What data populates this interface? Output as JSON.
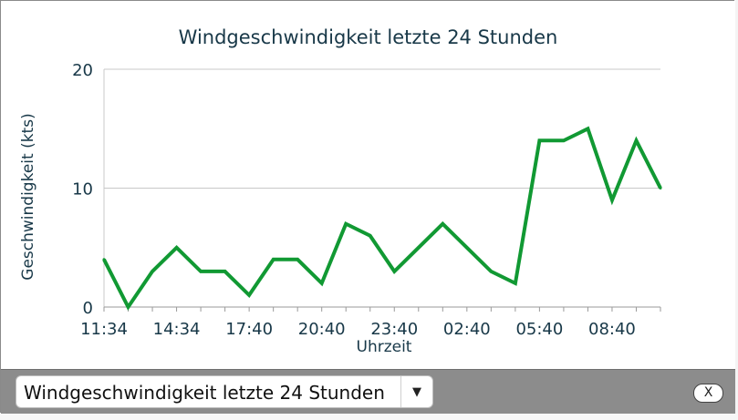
{
  "chart_data": {
    "type": "line",
    "title": "Windgeschwindigkeit letzte 24 Stunden",
    "xlabel": "Uhrzeit",
    "ylabel": "Geschwindigkeit (kts)",
    "ylim": [
      0,
      20
    ],
    "yticks": [
      "0",
      "10",
      "20"
    ],
    "grid": true,
    "xtick_labels": [
      "11:34",
      "14:34",
      "17:40",
      "20:40",
      "23:40",
      "02:40",
      "05:40",
      "08:40"
    ],
    "series": [
      {
        "color": "#119933",
        "values": [
          4,
          0,
          3,
          5,
          3,
          3,
          1,
          4,
          4,
          2,
          7,
          6,
          3,
          5,
          7,
          5,
          3,
          2,
          14,
          14,
          15,
          9,
          14,
          10
        ]
      }
    ]
  },
  "footer": {
    "select_value": "Windgeschwindigkeit letzte 24 Stunden",
    "dropdown_icon": "▼",
    "close_label": "X"
  }
}
